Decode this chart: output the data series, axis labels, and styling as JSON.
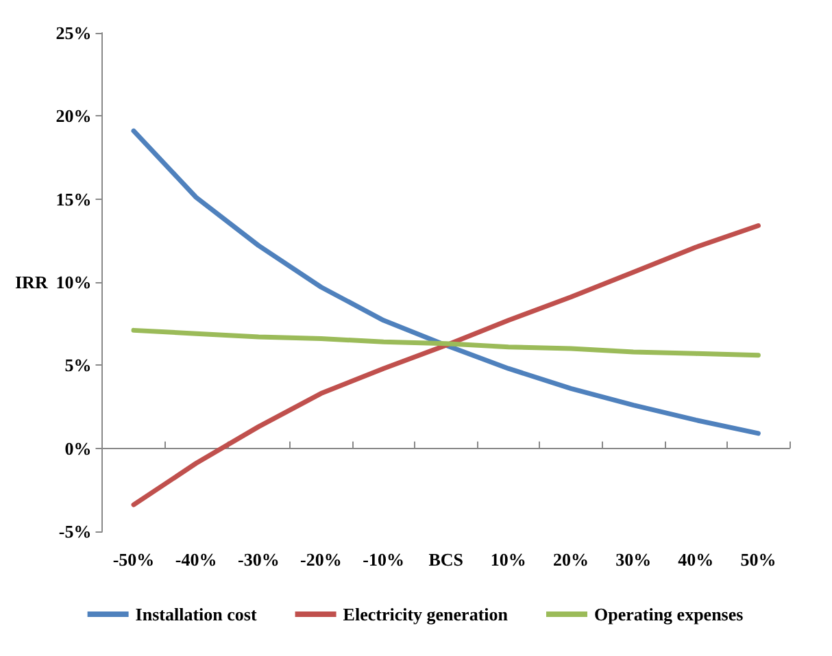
{
  "chart_data": {
    "type": "line",
    "ylabel": "IRR",
    "categories": [
      "-50%",
      "-40%",
      "-30%",
      "-20%",
      "-10%",
      "BCS",
      "10%",
      "20%",
      "30%",
      "40%",
      "50%"
    ],
    "series": [
      {
        "name": "Installation cost",
        "color": "#4f81bd",
        "values": [
          19.1,
          15.1,
          12.2,
          9.7,
          7.7,
          6.2,
          4.8,
          3.6,
          2.6,
          1.7,
          0.9
        ]
      },
      {
        "name": "Electricity generation",
        "color": "#c0504d",
        "values": [
          -3.4,
          -0.9,
          1.3,
          3.3,
          4.8,
          6.2,
          7.7,
          9.1,
          10.6,
          12.1,
          13.4
        ]
      },
      {
        "name": "Operating expenses",
        "color": "#9bbb59",
        "values": [
          7.1,
          6.9,
          6.7,
          6.6,
          6.4,
          6.3,
          6.1,
          6.0,
          5.8,
          5.7,
          5.6
        ]
      }
    ],
    "ylim": [
      -5,
      25
    ],
    "yticks": [
      {
        "value": -5,
        "label": "-5%"
      },
      {
        "value": 0,
        "label": "0%"
      },
      {
        "value": 5,
        "label": "5%"
      },
      {
        "value": 10,
        "label": "10%"
      },
      {
        "value": 15,
        "label": "15%"
      },
      {
        "value": 20,
        "label": "20%"
      },
      {
        "value": 25,
        "label": "25%"
      }
    ],
    "legend": "bottom",
    "marker": "none",
    "line_style": "solid"
  }
}
